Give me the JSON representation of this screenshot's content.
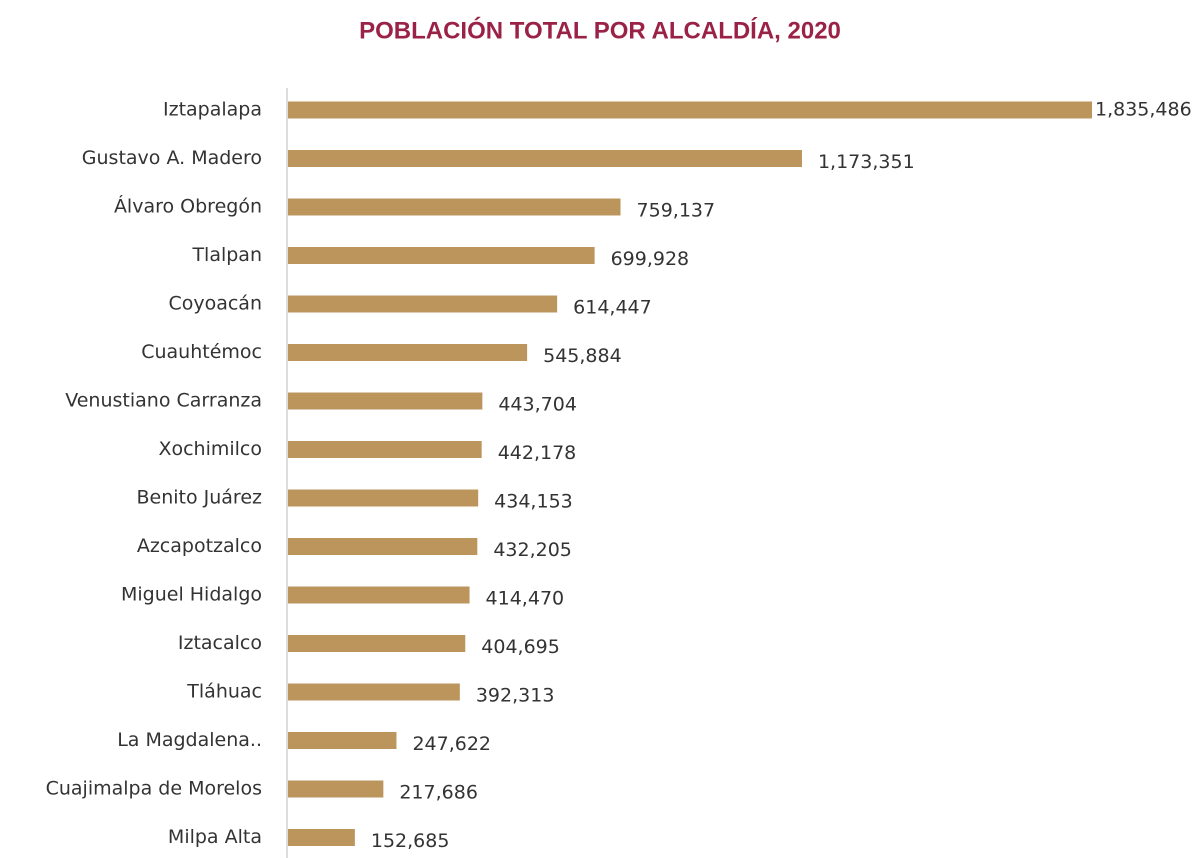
{
  "chart_data": {
    "type": "bar",
    "orientation": "horizontal",
    "title": "POBLACIÓN TOTAL POR ALCALDÍA, 2020",
    "categories": [
      "Iztapalapa",
      "Gustavo A. Madero",
      "Álvaro Obregón",
      "Tlalpan",
      "Coyoacán",
      "Cuauhtémoc",
      "Venustiano Carranza",
      "Xochimilco",
      "Benito Juárez",
      "Azcapotzalco",
      "Miguel Hidalgo",
      "Iztacalco",
      "Tláhuac",
      "La Magdalena..",
      "Cuajimalpa de Morelos",
      "Milpa Alta"
    ],
    "values": [
      1835486,
      1173351,
      759137,
      699928,
      614447,
      545884,
      443704,
      442178,
      434153,
      432205,
      414470,
      404695,
      392313,
      247622,
      217686,
      152685
    ],
    "value_labels": [
      "1,835,486",
      "1,173,351",
      "759,137",
      "699,928",
      "614,447",
      "545,884",
      "443,704",
      "442,178",
      "434,153",
      "432,205",
      "414,470",
      "404,695",
      "392,313",
      "247,622",
      "217,686",
      "152,685"
    ],
    "color": "#bc955c"
  }
}
